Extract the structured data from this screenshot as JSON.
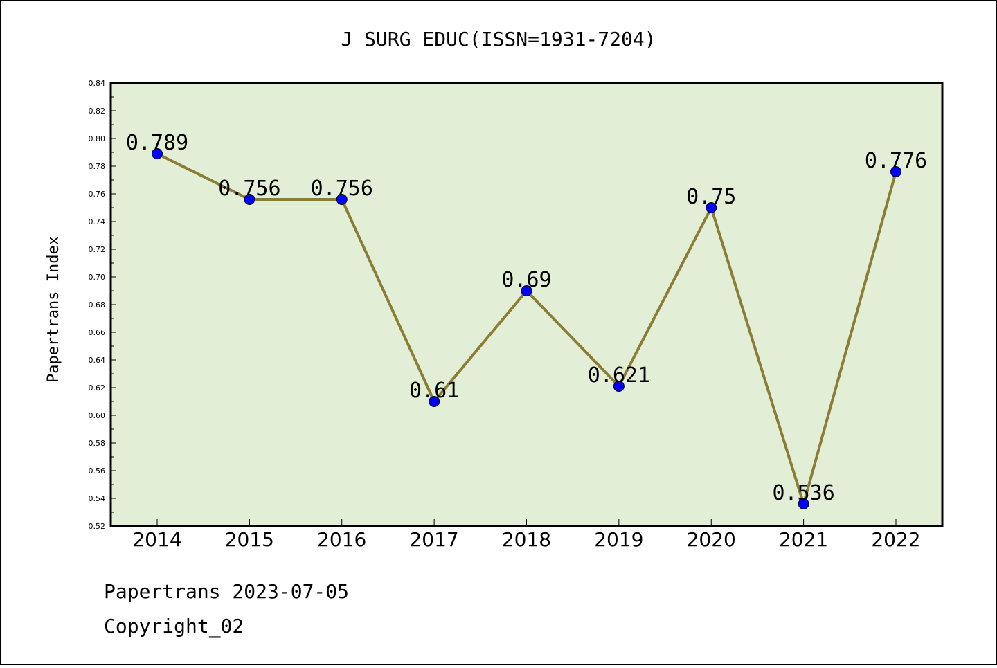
{
  "chart_data": {
    "type": "line",
    "title": "J SURG EDUC(ISSN=1931-7204)",
    "xlabel": "",
    "ylabel": "Papertrans Index",
    "categories": [
      "2014",
      "2015",
      "2016",
      "2017",
      "2018",
      "2019",
      "2020",
      "2021",
      "2022"
    ],
    "values": [
      0.789,
      0.756,
      0.756,
      0.61,
      0.69,
      0.621,
      0.75,
      0.536,
      0.776
    ],
    "data_labels": [
      "0.789",
      "0.756",
      "0.756",
      "0.61",
      "0.69",
      "0.621",
      "0.75",
      "0.536",
      "0.776"
    ],
    "ylim": [
      0.52,
      0.84
    ],
    "yticks": [
      "0.52",
      "0.54",
      "0.56",
      "0.58",
      "0.60",
      "0.62",
      "0.64",
      "0.66",
      "0.68",
      "0.70",
      "0.72",
      "0.74",
      "0.76",
      "0.78",
      "0.80",
      "0.82",
      "0.84"
    ],
    "grid": false,
    "colors": {
      "plot_background": "#e2efd6",
      "line": "#8b7d35",
      "marker": "#0000ff",
      "frame": "#000000"
    }
  },
  "footer": {
    "line1": "Papertrans 2023-07-05",
    "line2": "Copyright_02"
  }
}
